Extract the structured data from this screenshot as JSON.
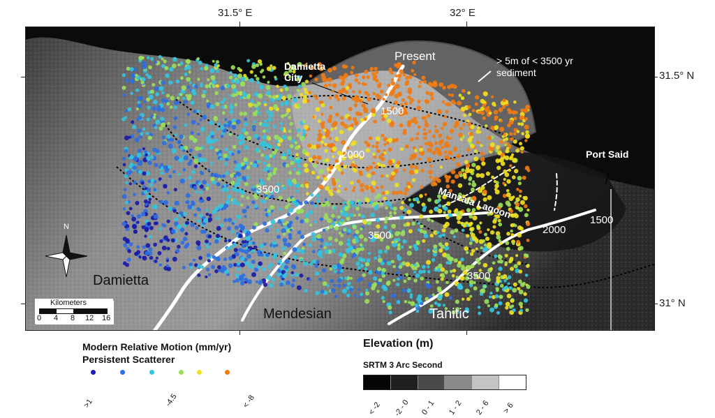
{
  "map": {
    "longitude_ticks": [
      "31.5° E",
      "32° E"
    ],
    "latitude_ticks": [
      "31.5° N",
      "31° N"
    ],
    "places": {
      "damietta_city": "Damietta\nCity",
      "port_said": "Port Said",
      "manzala_lagoon": "Manzala Lagoon",
      "damietta": "Damietta",
      "mendesian": "Mendesian",
      "tanitic": "Tanitic",
      "present": "Present"
    },
    "sediment_note": "> 5m of < 3500 yr\nsediment",
    "isochrones": [
      "1500",
      "2000",
      "3500",
      "3500",
      "2000",
      "1500",
      "3500"
    ],
    "north_label": "N",
    "scale": {
      "title": "Kilometers",
      "ticks": [
        "0",
        "4",
        "8",
        "12",
        "16"
      ]
    }
  },
  "motion_legend": {
    "title_line1": "Modern Relative Motion (mm/yr)",
    "title_line2": "Persistent Scatterer",
    "colors": [
      "#1a1aa8",
      "#2f6fe0",
      "#33c4df",
      "#9be05a",
      "#f0e020",
      "#f07b12"
    ],
    "labels": [
      ">1",
      "-4.5",
      "< -8"
    ]
  },
  "elevation_legend": {
    "title": "Elevation (m)",
    "subtitle": "SRTM 3 Arc Second",
    "classes": [
      "< -2",
      "-2 - 0",
      "0 - 1",
      "1 - 2",
      "2 - 6",
      "> 6"
    ],
    "colors": [
      "#050505",
      "#1e1e1e",
      "#4a4a4a",
      "#8a8a8a",
      "#c4c4c4",
      "#ffffff"
    ]
  }
}
